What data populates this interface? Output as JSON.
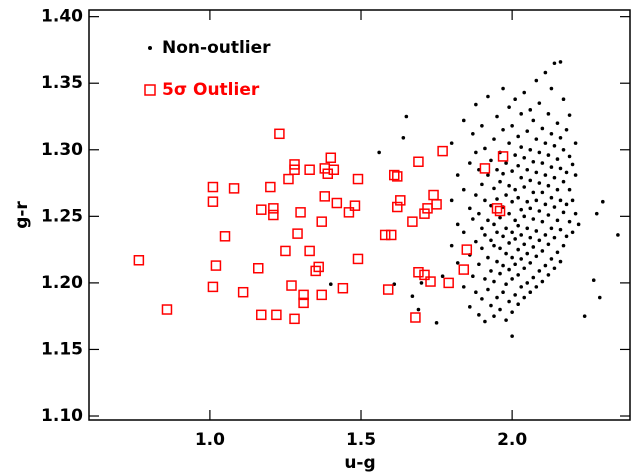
{
  "chart_data": {
    "type": "scatter",
    "xlabel": "u-g",
    "ylabel": "g-r",
    "xlim": [
      0.6,
      2.39
    ],
    "ylim": [
      1.097,
      1.405
    ],
    "xticks": [
      {
        "value": 1.0,
        "label": "1.0"
      },
      {
        "value": 1.5,
        "label": "1.5"
      },
      {
        "value": 2.0,
        "label": "2.0"
      }
    ],
    "yticks": [
      {
        "value": 1.1,
        "label": "1.10"
      },
      {
        "value": 1.15,
        "label": "1.15"
      },
      {
        "value": 1.2,
        "label": "1.20"
      },
      {
        "value": 1.25,
        "label": "1.25"
      },
      {
        "value": 1.3,
        "label": "1.30"
      },
      {
        "value": 1.35,
        "label": "1.35"
      },
      {
        "value": 1.4,
        "label": "1.40"
      }
    ],
    "legend": "upper left",
    "series": [
      {
        "name": "Non-outlier",
        "color": "#000000",
        "marker": "dot",
        "x": [
          1.56,
          1.65,
          1.64,
          1.75,
          1.67,
          1.69,
          1.61,
          1.4,
          1.7,
          1.77,
          2.27,
          2.29,
          2.35,
          2.3,
          2.28,
          2.22,
          2.0,
          2.24,
          1.8,
          1.8,
          1.8,
          1.82,
          1.82,
          1.82,
          1.84,
          1.84,
          1.84,
          1.84,
          1.86,
          1.86,
          1.86,
          1.86,
          1.87,
          1.87,
          1.87,
          1.88,
          1.88,
          1.88,
          1.88,
          1.88,
          1.89,
          1.89,
          1.89,
          1.89,
          1.9,
          1.9,
          1.9,
          1.9,
          1.9,
          1.91,
          1.91,
          1.91,
          1.91,
          1.91,
          1.92,
          1.92,
          1.92,
          1.92,
          1.92,
          1.93,
          1.93,
          1.93,
          1.93,
          1.93,
          1.94,
          1.94,
          1.94,
          1.94,
          1.94,
          1.94,
          1.95,
          1.95,
          1.95,
          1.95,
          1.95,
          1.95,
          1.96,
          1.96,
          1.96,
          1.96,
          1.96,
          1.96,
          1.97,
          1.97,
          1.97,
          1.97,
          1.97,
          1.97,
          1.97,
          1.98,
          1.98,
          1.98,
          1.98,
          1.98,
          1.98,
          1.99,
          1.99,
          1.99,
          1.99,
          1.99,
          1.99,
          1.99,
          2.0,
          2.0,
          2.0,
          2.0,
          2.0,
          2.0,
          2.0,
          2.01,
          2.01,
          2.01,
          2.01,
          2.01,
          2.01,
          2.01,
          2.02,
          2.02,
          2.02,
          2.02,
          2.02,
          2.02,
          2.02,
          2.03,
          2.03,
          2.03,
          2.03,
          2.03,
          2.03,
          2.03,
          2.04,
          2.04,
          2.04,
          2.04,
          2.04,
          2.04,
          2.04,
          2.05,
          2.05,
          2.05,
          2.05,
          2.05,
          2.05,
          2.06,
          2.06,
          2.06,
          2.06,
          2.06,
          2.06,
          2.06,
          2.07,
          2.07,
          2.07,
          2.07,
          2.07,
          2.07,
          2.08,
          2.08,
          2.08,
          2.08,
          2.08,
          2.08,
          2.08,
          2.09,
          2.09,
          2.09,
          2.09,
          2.09,
          2.09,
          2.1,
          2.1,
          2.1,
          2.1,
          2.1,
          2.1,
          2.11,
          2.11,
          2.11,
          2.11,
          2.11,
          2.11,
          2.12,
          2.12,
          2.12,
          2.12,
          2.12,
          2.12,
          2.13,
          2.13,
          2.13,
          2.13,
          2.13,
          2.13,
          2.14,
          2.14,
          2.14,
          2.14,
          2.14,
          2.14,
          2.15,
          2.15,
          2.15,
          2.15,
          2.15,
          2.16,
          2.16,
          2.16,
          2.16,
          2.16,
          2.16,
          2.17,
          2.17,
          2.17,
          2.17,
          2.17,
          2.18,
          2.18,
          2.18,
          2.18,
          2.19,
          2.19,
          2.19,
          2.19,
          2.2,
          2.2,
          2.2,
          2.21,
          2.21,
          2.21
        ],
        "values": [
          1.298,
          1.325,
          1.309,
          1.17,
          1.19,
          1.18,
          1.199,
          1.199,
          1.2,
          1.205,
          1.202,
          1.189,
          1.236,
          1.261,
          1.252,
          1.244,
          1.16,
          1.175,
          1.228,
          1.262,
          1.305,
          1.215,
          1.244,
          1.281,
          1.197,
          1.238,
          1.27,
          1.322,
          1.182,
          1.221,
          1.256,
          1.29,
          1.205,
          1.248,
          1.312,
          1.193,
          1.231,
          1.266,
          1.298,
          1.334,
          1.176,
          1.214,
          1.252,
          1.285,
          1.188,
          1.226,
          1.241,
          1.274,
          1.318,
          1.171,
          1.203,
          1.236,
          1.262,
          1.301,
          1.195,
          1.219,
          1.247,
          1.281,
          1.34,
          1.183,
          1.209,
          1.232,
          1.258,
          1.292,
          1.175,
          1.201,
          1.228,
          1.244,
          1.271,
          1.308,
          1.189,
          1.216,
          1.238,
          1.263,
          1.285,
          1.325,
          1.18,
          1.207,
          1.226,
          1.249,
          1.276,
          1.298,
          1.193,
          1.213,
          1.235,
          1.257,
          1.282,
          1.315,
          1.346,
          1.172,
          1.199,
          1.222,
          1.241,
          1.266,
          1.29,
          1.186,
          1.21,
          1.23,
          1.252,
          1.273,
          1.305,
          1.332,
          1.178,
          1.203,
          1.219,
          1.238,
          1.261,
          1.284,
          1.318,
          1.191,
          1.214,
          1.233,
          1.247,
          1.27,
          1.296,
          1.338,
          1.184,
          1.206,
          1.225,
          1.243,
          1.264,
          1.288,
          1.31,
          1.197,
          1.218,
          1.236,
          1.255,
          1.279,
          1.302,
          1.327,
          1.189,
          1.211,
          1.229,
          1.25,
          1.272,
          1.294,
          1.343,
          1.2,
          1.222,
          1.241,
          1.261,
          1.285,
          1.314,
          1.193,
          1.215,
          1.234,
          1.256,
          1.277,
          1.3,
          1.33,
          1.204,
          1.227,
          1.248,
          1.268,
          1.291,
          1.322,
          1.197,
          1.22,
          1.239,
          1.262,
          1.283,
          1.308,
          1.352,
          1.209,
          1.232,
          1.254,
          1.275,
          1.298,
          1.335,
          1.201,
          1.224,
          1.246,
          1.268,
          1.29,
          1.316,
          1.213,
          1.236,
          1.259,
          1.281,
          1.305,
          1.358,
          1.206,
          1.229,
          1.251,
          1.273,
          1.296,
          1.327,
          1.218,
          1.241,
          1.264,
          1.287,
          1.312,
          1.346,
          1.211,
          1.234,
          1.257,
          1.279,
          1.303,
          1.365,
          1.223,
          1.247,
          1.27,
          1.293,
          1.32,
          1.216,
          1.24,
          1.262,
          1.286,
          1.309,
          1.366,
          1.228,
          1.253,
          1.276,
          1.3,
          1.338,
          1.235,
          1.259,
          1.283,
          1.315,
          1.246,
          1.27,
          1.295,
          1.326,
          1.238,
          1.262,
          1.289,
          1.252,
          1.281,
          1.305
        ]
      },
      {
        "name": "5σ Outlier",
        "color": "#ff0000",
        "marker": "square",
        "x": [
          0.765,
          0.858,
          1.01,
          1.01,
          1.02,
          1.01,
          1.05,
          1.08,
          1.11,
          1.16,
          1.17,
          1.17,
          1.2,
          1.21,
          1.21,
          1.22,
          1.23,
          1.25,
          1.26,
          1.27,
          1.28,
          1.28,
          1.28,
          1.29,
          1.3,
          1.31,
          1.31,
          1.33,
          1.33,
          1.35,
          1.36,
          1.37,
          1.37,
          1.38,
          1.38,
          1.39,
          1.4,
          1.41,
          1.42,
          1.44,
          1.46,
          1.48,
          1.49,
          1.49,
          1.58,
          1.59,
          1.6,
          1.61,
          1.62,
          1.62,
          1.63,
          1.67,
          1.68,
          1.69,
          1.69,
          1.71,
          1.71,
          1.72,
          1.73,
          1.74,
          1.75,
          1.77,
          1.79,
          1.84,
          1.85,
          1.91,
          1.95,
          1.96,
          1.97
        ],
        "values": [
          1.217,
          1.18,
          1.272,
          1.261,
          1.213,
          1.197,
          1.235,
          1.271,
          1.193,
          1.211,
          1.255,
          1.176,
          1.272,
          1.251,
          1.256,
          1.176,
          1.312,
          1.224,
          1.278,
          1.198,
          1.173,
          1.289,
          1.285,
          1.237,
          1.253,
          1.191,
          1.185,
          1.285,
          1.224,
          1.209,
          1.212,
          1.191,
          1.246,
          1.265,
          1.286,
          1.282,
          1.294,
          1.285,
          1.26,
          1.196,
          1.253,
          1.258,
          1.218,
          1.278,
          1.236,
          1.195,
          1.236,
          1.281,
          1.28,
          1.257,
          1.262,
          1.246,
          1.174,
          1.208,
          1.291,
          1.206,
          1.252,
          1.256,
          1.201,
          1.266,
          1.259,
          1.299,
          1.2,
          1.21,
          1.225,
          1.286,
          1.256,
          1.254,
          1.295
        ]
      }
    ]
  }
}
